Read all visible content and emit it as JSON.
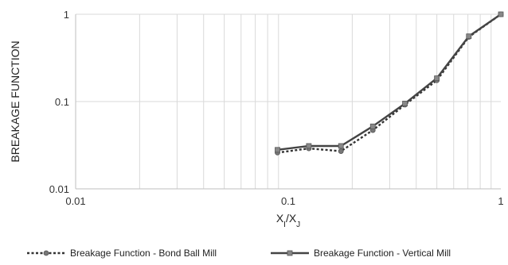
{
  "chart_data": {
    "type": "line",
    "title": "",
    "xlabel": "XI/XJ",
    "ylabel": "BREAKAGE FUNCTION",
    "x_scale": "log",
    "y_scale": "log",
    "xlim": [
      0.01,
      1
    ],
    "ylim": [
      0.01,
      1
    ],
    "grid": true,
    "legend_position": "bottom",
    "x_tick_labels": [
      "0.01",
      "0.1",
      "1"
    ],
    "y_tick_labels": [
      "0.01",
      "0.1",
      "1"
    ],
    "series": [
      {
        "name": "Breakage Function - Bond Ball Mill",
        "style": "dotted",
        "marker": "circle",
        "color": "#333333",
        "x": [
          0.089,
          0.125,
          0.177,
          0.25,
          0.354,
          0.5,
          0.707,
          1.0
        ],
        "y": [
          0.026,
          0.029,
          0.027,
          0.047,
          0.092,
          0.175,
          0.55,
          1.0
        ]
      },
      {
        "name": "Breakage Function - Vertical Mill",
        "style": "solid",
        "marker": "square",
        "color": "#444444",
        "x": [
          0.089,
          0.125,
          0.177,
          0.25,
          0.354,
          0.5,
          0.707,
          1.0
        ],
        "y": [
          0.028,
          0.031,
          0.031,
          0.052,
          0.095,
          0.185,
          0.56,
          1.0
        ]
      }
    ]
  }
}
